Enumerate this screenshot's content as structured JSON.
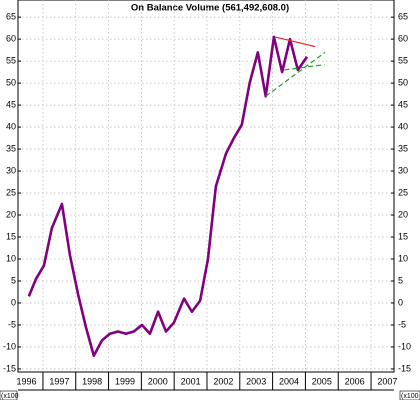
{
  "chart_data": {
    "type": "line",
    "title": "On Balance Volume (561,492,608.0)",
    "x": [
      1996.57,
      1996.79,
      1997.03,
      1997.27,
      1997.58,
      1997.82,
      1998.07,
      1998.31,
      1998.55,
      1998.8,
      1999.04,
      1999.29,
      1999.53,
      1999.77,
      2000.02,
      2000.26,
      2000.51,
      2000.75,
      2000.99,
      2001.3,
      2001.54,
      2001.79,
      2002.03,
      2002.27,
      2002.58,
      2002.82,
      2003.06,
      2003.3,
      2003.55,
      2003.79,
      2004.04,
      2004.29,
      2004.53,
      2004.77,
      2005.05
    ],
    "series": [
      {
        "color": "#800080",
        "values": [
          1.5,
          5.5,
          8.5,
          17,
          22.5,
          11,
          2,
          -5.5,
          -12,
          -8.5,
          -7,
          -6.5,
          -7,
          -6.5,
          -5,
          -7,
          -2,
          -6.5,
          -4.5,
          1,
          -2,
          0.5,
          10,
          26.5,
          34,
          37.5,
          40.5,
          50,
          57,
          47,
          60.5,
          52.5,
          60,
          53,
          56
        ]
      }
    ],
    "trendlines": [
      {
        "color": "#e03030",
        "dashed": false,
        "x": [
          2004.07,
          2005.3
        ],
        "values": [
          60.5,
          58.3
        ]
      },
      {
        "color": "#2e9a2e",
        "dashed": true,
        "x": [
          2003.79,
          2005.6
        ],
        "values": [
          47,
          57
        ]
      },
      {
        "color": "#2e9a2e",
        "dashed": true,
        "x": [
          2004.36,
          2005.58
        ],
        "values": [
          53,
          54.2
        ]
      }
    ],
    "xlim": [
      1996.24,
      2007.7
    ],
    "ylim": [
      -15.7,
      68.9
    ],
    "xticks": [
      {
        "value": 1996.5,
        "label": "1996"
      },
      {
        "value": 1997.5,
        "label": "1997"
      },
      {
        "value": 1998.5,
        "label": "1998"
      },
      {
        "value": 1999.5,
        "label": "1999"
      },
      {
        "value": 2000.5,
        "label": "2000"
      },
      {
        "value": 2001.5,
        "label": "2001"
      },
      {
        "value": 2002.5,
        "label": "2002"
      },
      {
        "value": 2003.5,
        "label": "2003"
      },
      {
        "value": 2004.5,
        "label": "2004"
      },
      {
        "value": 2005.5,
        "label": "2005"
      },
      {
        "value": 2006.5,
        "label": "2006"
      },
      {
        "value": 2007.5,
        "label": "2007"
      }
    ],
    "xgrid": [
      1997,
      1998,
      1999,
      2000,
      2001,
      2002,
      2003,
      2004,
      2005,
      2006,
      2007
    ],
    "yticks": [
      -15,
      -10,
      -5,
      0,
      5,
      10,
      15,
      20,
      25,
      30,
      35,
      40,
      45,
      50,
      55,
      60,
      65
    ],
    "grid": true,
    "unit_label": "(x100"
  }
}
